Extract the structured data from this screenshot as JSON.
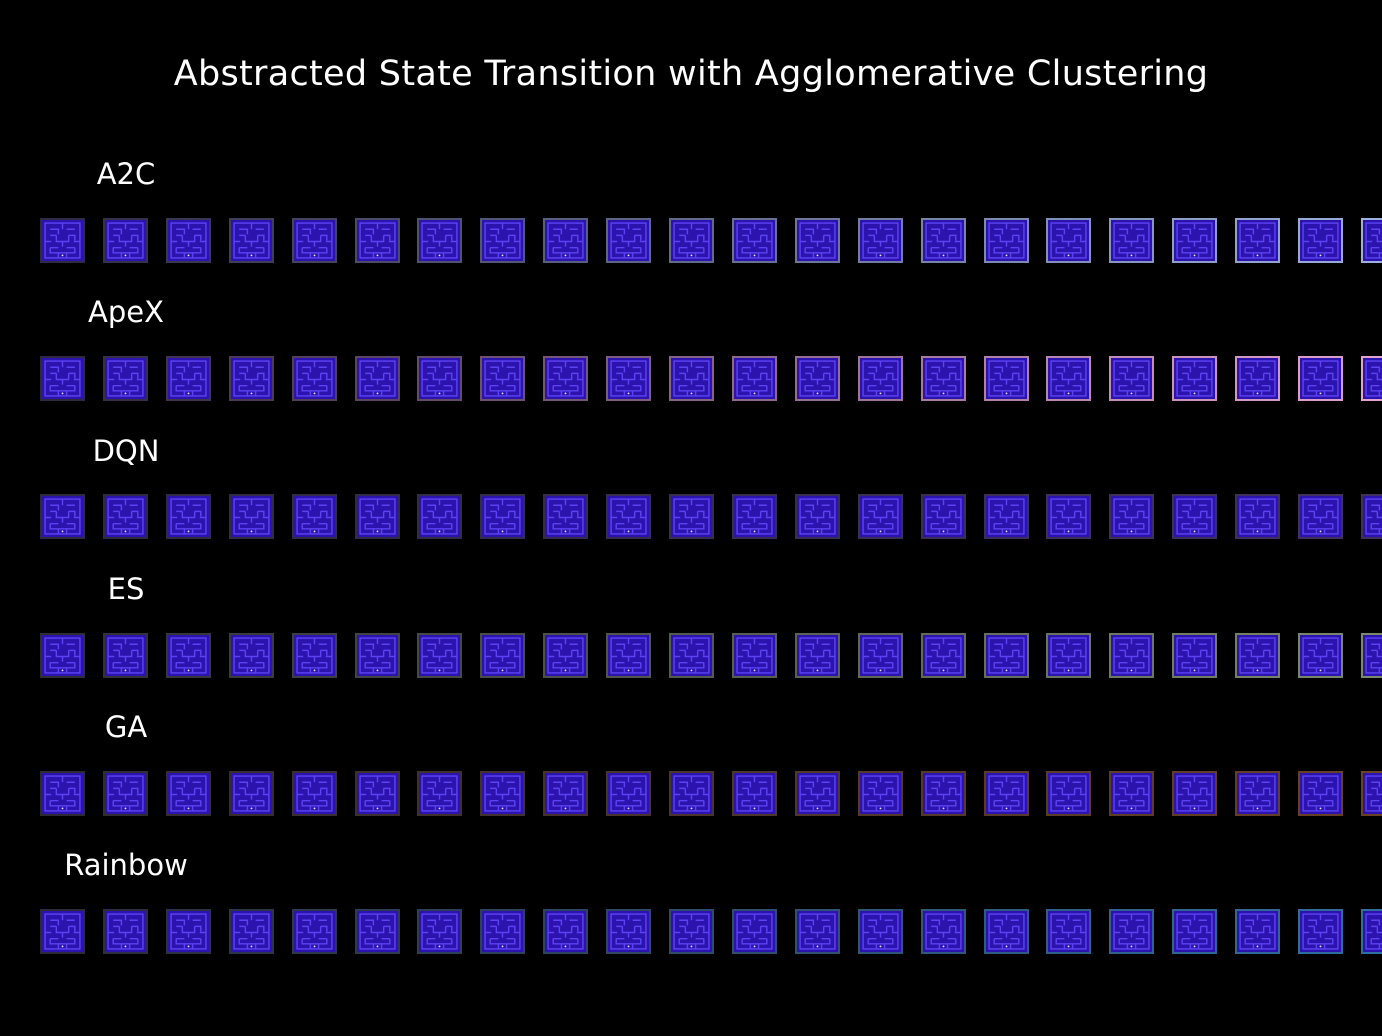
{
  "title": "Abstracted State Transition with Agglomerative Clustering",
  "tile_fill": "#2c13ae",
  "maze_wall_color": "#5b43f2",
  "rows": [
    {
      "label": "A2C",
      "frame_color_start": "#2f2b44",
      "frame_color_end": "#9bb0dc",
      "frames_visible": 22
    },
    {
      "label": "ApeX",
      "frame_color_start": "#302840",
      "frame_color_end": "#e3a3d0",
      "frames_visible": 22
    },
    {
      "label": "DQN",
      "frame_color_start": "#2e2a40",
      "frame_color_end": "#403060",
      "frames_visible": 22
    },
    {
      "label": "ES",
      "frame_color_start": "#2f2e38",
      "frame_color_end": "#7b8a6a",
      "frames_visible": 22
    },
    {
      "label": "GA",
      "frame_color_start": "#2e2a33",
      "frame_color_end": "#6a4026",
      "frames_visible": 22
    },
    {
      "label": "Rainbow",
      "frame_color_start": "#2c2a3a",
      "frame_color_end": "#2f6fa0",
      "frames_visible": 22
    }
  ]
}
